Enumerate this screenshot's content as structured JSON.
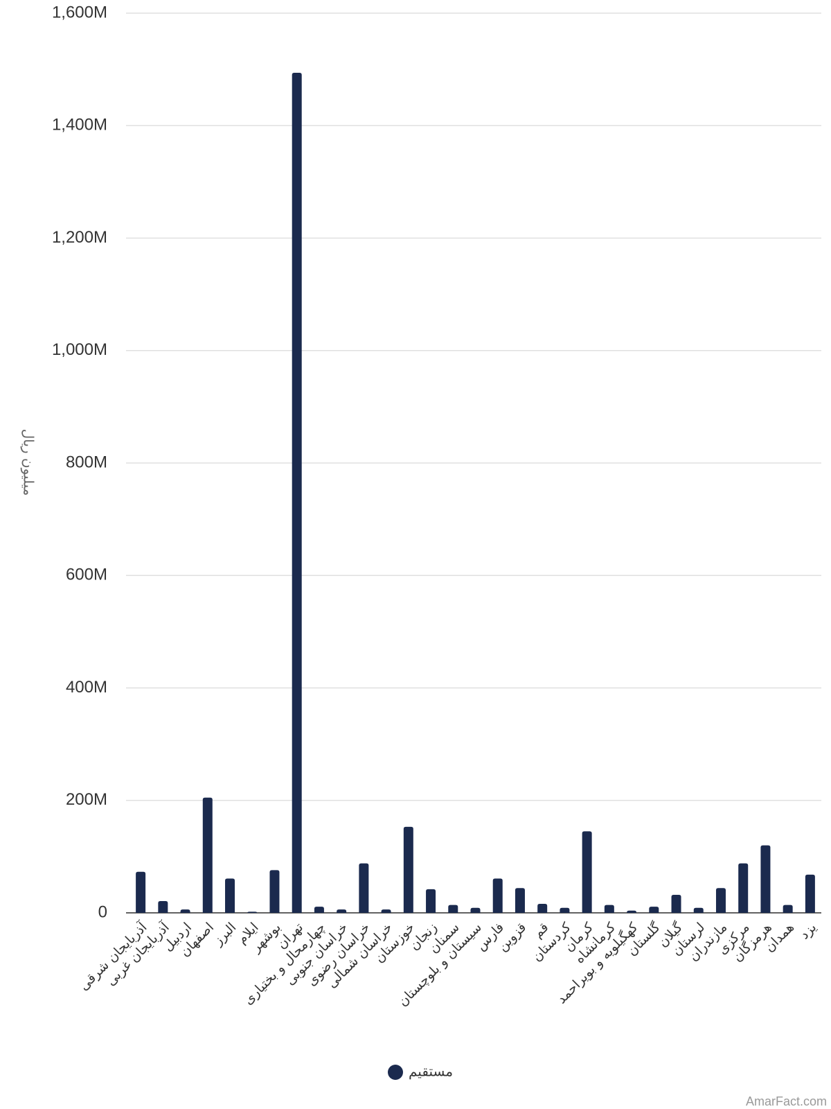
{
  "chart_data": {
    "type": "bar",
    "y_label": "میلیون ریال",
    "categories": [
      "آذربایجان شرقی",
      "آذربایجان غربی",
      "اردبیل",
      "اصفهان",
      "البرز",
      "ایلام",
      "بوشهر",
      "تهران",
      "چهارمحال و بختیاری",
      "خراسان جنوبی",
      "خراسان رضوی",
      "خراسان شمالی",
      "خوزستان",
      "زنجان",
      "سمنان",
      "سیستان و بلوچستان",
      "فارس",
      "قزوین",
      "قم",
      "کردستان",
      "کرمان",
      "کرمانشاه",
      "کهگیلویه و بویراحمد",
      "گلستان",
      "گیلان",
      "لرستان",
      "مازندران",
      "مرکزی",
      "هرمزگان",
      "همدان",
      "یزد"
    ],
    "series": [
      {
        "name": "مستقیم",
        "color": "#1b2a4e",
        "values": [
          73000000,
          21000000,
          6000000,
          205000000,
          61000000,
          2000000,
          76000000,
          1494000000,
          11000000,
          6000000,
          88000000,
          6000000,
          153000000,
          42000000,
          14000000,
          9000000,
          61000000,
          44000000,
          16000000,
          9000000,
          145000000,
          14000000,
          4000000,
          11000000,
          32000000,
          9000000,
          44000000,
          88000000,
          120000000,
          14000000,
          68000000
        ]
      }
    ],
    "ylim": [
      0,
      1600000000
    ],
    "yticks": [
      0,
      {
        "value": 200000000,
        "label": "200M"
      },
      {
        "value": 400000000,
        "label": "400M"
      },
      {
        "value": 600000000,
        "label": "600M"
      },
      {
        "value": 800000000,
        "label": "800M"
      },
      {
        "value": 1000000000,
        "label": "1,000M"
      },
      {
        "value": 1200000000,
        "label": "1,200M"
      },
      {
        "value": 1400000000,
        "label": "1,400M"
      },
      {
        "value": 1600000000,
        "label": "1,600M"
      }
    ],
    "grid": true,
    "legend": "bottom",
    "watermark": "AmarFact.com"
  }
}
